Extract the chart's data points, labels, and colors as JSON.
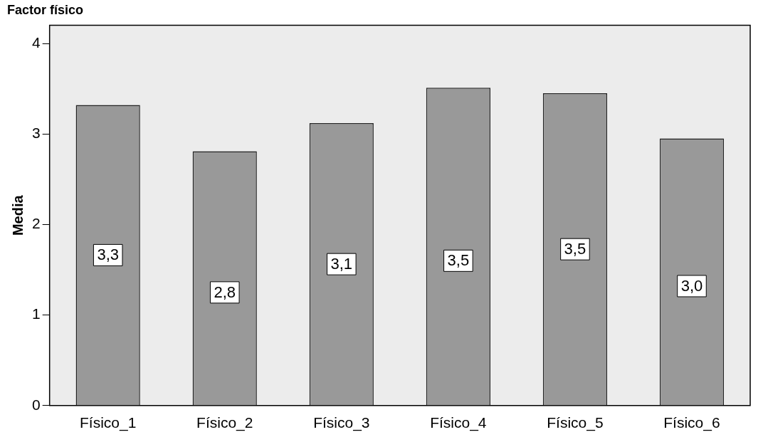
{
  "chart_data": {
    "type": "bar",
    "title": "Factor físico",
    "ylabel": "Media",
    "categories": [
      "Físico_1",
      "Físico_2",
      "Físico_3",
      "Físico_4",
      "Físico_5",
      "Físico_6"
    ],
    "values": [
      3.32,
      2.81,
      3.12,
      3.51,
      3.45,
      2.95
    ],
    "value_labels": [
      "3,3",
      "2,8",
      "3,1",
      "3,5",
      "3,5",
      "3,0"
    ],
    "color": "#999999",
    "ylim": [
      0,
      4.2
    ],
    "yticks": [
      0,
      1,
      2,
      3,
      4
    ],
    "grid": false,
    "legend": false
  }
}
